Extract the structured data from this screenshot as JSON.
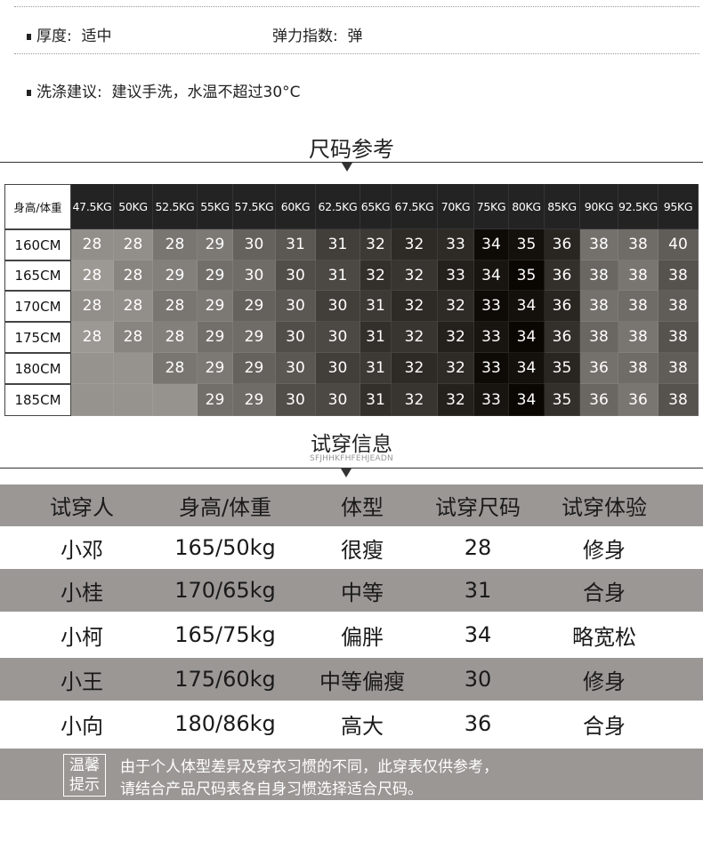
{
  "specs": {
    "thickness_label": "厚度:",
    "thickness_value": "适中",
    "elasticity_label": "弹力指数:",
    "elasticity_value": "弹",
    "wash_label": "洗涤建议:",
    "wash_value": "建议手洗，水温不超过30°C"
  },
  "size_section": {
    "title": "尺码参考",
    "corner_label": "身高/体重",
    "weights": [
      "47.5KG",
      "50KG",
      "52.5KG",
      "55KG",
      "57.5KG",
      "60KG",
      "62.5KG",
      "65KG",
      "67.5KG",
      "70KG",
      "75KG",
      "80KG",
      "85KG",
      "90KG",
      "92.5KG",
      "95KG"
    ],
    "rows": [
      {
        "height": "160CM",
        "sizes": [
          "28",
          "28",
          "28",
          "29",
          "30",
          "31",
          "31",
          "32",
          "32",
          "33",
          "34",
          "35",
          "36",
          "38",
          "38",
          "40"
        ]
      },
      {
        "height": "165CM",
        "sizes": [
          "28",
          "28",
          "29",
          "29",
          "30",
          "30",
          "31",
          "32",
          "32",
          "33",
          "34",
          "35",
          "36",
          "38",
          "38",
          "38"
        ]
      },
      {
        "height": "170CM",
        "sizes": [
          "28",
          "28",
          "28",
          "29",
          "29",
          "30",
          "30",
          "31",
          "32",
          "32",
          "33",
          "34",
          "36",
          "38",
          "38",
          "38"
        ]
      },
      {
        "height": "175CM",
        "sizes": [
          "28",
          "28",
          "28",
          "29",
          "29",
          "30",
          "30",
          "31",
          "32",
          "32",
          "33",
          "34",
          "36",
          "38",
          "38",
          "38"
        ]
      },
      {
        "height": "180CM",
        "sizes": [
          null,
          null,
          "28",
          "29",
          "29",
          "30",
          "30",
          "31",
          "32",
          "32",
          "33",
          "34",
          "35",
          "36",
          "38",
          "38"
        ]
      },
      {
        "height": "185CM",
        "sizes": [
          null,
          null,
          null,
          "29",
          "29",
          "30",
          "30",
          "31",
          "32",
          "32",
          "33",
          "34",
          "35",
          "36",
          "36",
          "38"
        ]
      }
    ]
  },
  "trial_section": {
    "title": "试穿信息",
    "subtitle": "SFJHHKFHFEHJEADN",
    "headers": [
      "试穿人",
      "身高/体重",
      "体型",
      "试穿尺码",
      "试穿体验"
    ],
    "rows": [
      [
        "小邓",
        "165/50kg",
        "很瘦",
        "28",
        "修身"
      ],
      [
        "小桂",
        "170/65kg",
        "中等",
        "31",
        "合身"
      ],
      [
        "小柯",
        "165/75kg",
        "偏胖",
        "34",
        "略宽松"
      ],
      [
        "小王",
        "175/60kg",
        "中等偏瘦",
        "30",
        "修身"
      ],
      [
        "小向",
        "180/86kg",
        "高大",
        "36",
        "合身"
      ]
    ],
    "header_bg": "#9b9794"
  },
  "note": {
    "label_line1": "温馨",
    "label_line2": "提示",
    "line1": "由于个人体型差异及穿衣习惯的不同，此穿表仅供参考，",
    "line2": "请结合产品尺码表各自身习惯选择适合尺码。"
  }
}
